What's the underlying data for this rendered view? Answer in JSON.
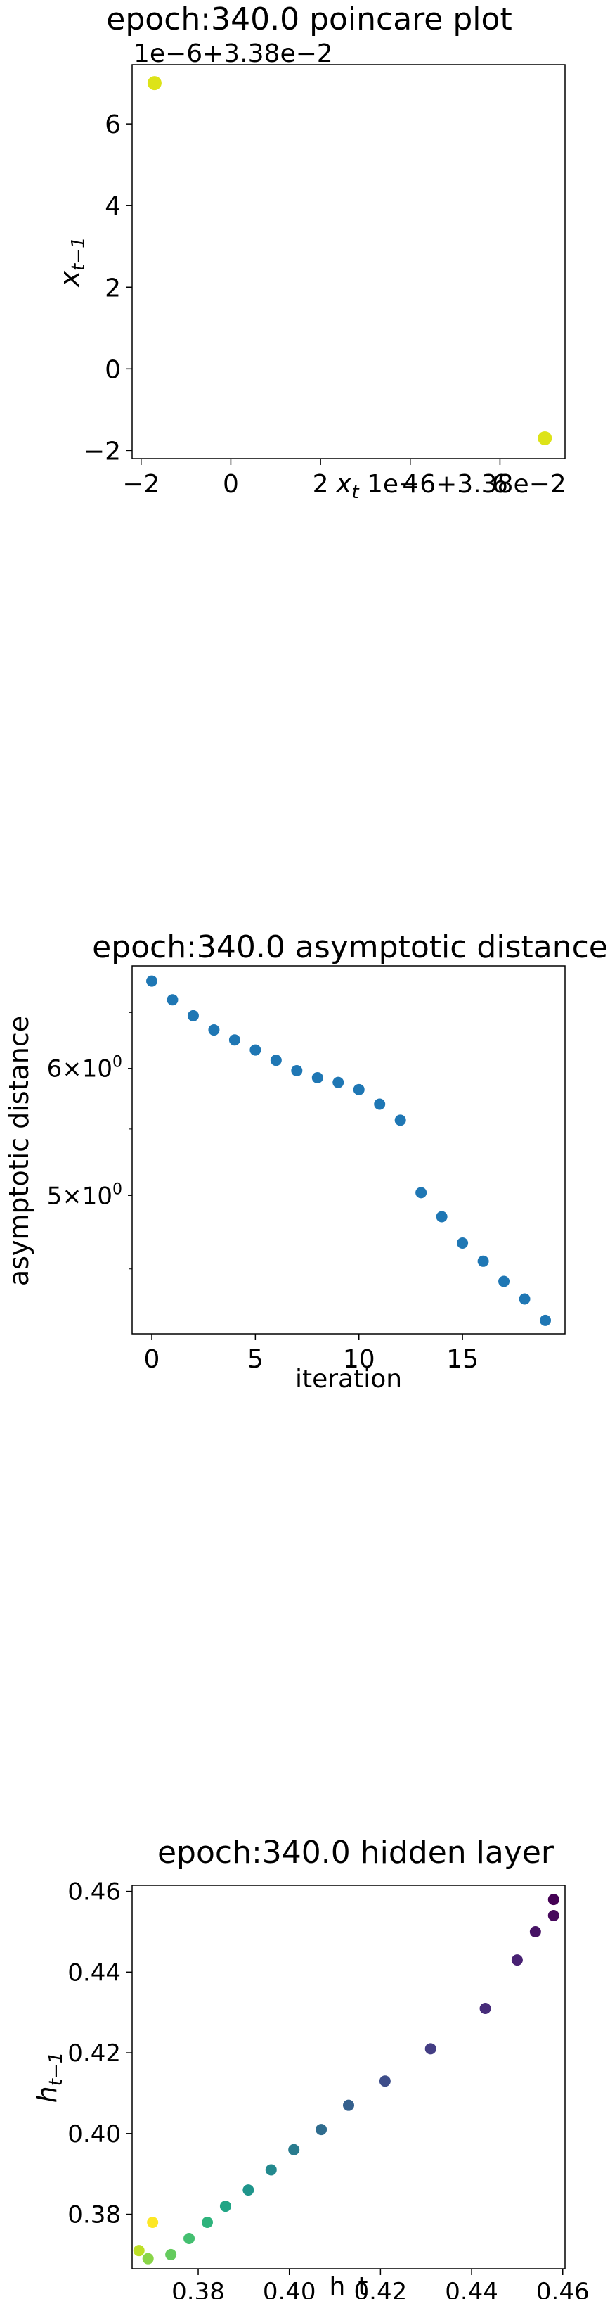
{
  "charts": [
    {
      "title": "epoch:340.0 poincare plot",
      "xlabel": "x_t",
      "ylabel": "x_{t-1}",
      "x_offset_text": "1e−6+3.38e−2",
      "y_offset_text": "1e−6+3.38e−2",
      "xticks": [
        "−2",
        "0",
        "2",
        "4",
        "6"
      ],
      "yticks": [
        "−2",
        "0",
        "2",
        "4",
        "6"
      ]
    },
    {
      "title": "epoch:340.0 asymptotic distance",
      "xlabel": "iteration",
      "ylabel": "asymptotic distance",
      "xticks": [
        "0",
        "5",
        "10",
        "15"
      ],
      "ytick_major_base": [
        "6",
        "5"
      ],
      "ytick_major_exp": [
        "0",
        "0"
      ]
    },
    {
      "title": "epoch:340.0 hidden layer",
      "xlabel": "h_t",
      "ylabel": "h_{t-1}",
      "xticks": [
        "0.38",
        "0.40",
        "0.42",
        "0.44",
        "0.46"
      ],
      "yticks": [
        "0.38",
        "0.40",
        "0.42",
        "0.44",
        "0.46"
      ]
    }
  ],
  "chart_data": [
    {
      "type": "scatter",
      "title": "epoch:340.0 poincare plot",
      "xlabel": "x_t",
      "ylabel": "x_{t-1}",
      "offset": "1e-6+3.38e-2",
      "x": [
        7.0,
        -1.7
      ],
      "y": [
        -1.7,
        7.0
      ],
      "x_units_note": "values shown in units of 1e-6 added to 3.38e-2",
      "xlim": [
        -2.2,
        7.45
      ],
      "ylim": [
        -2.2,
        7.45
      ],
      "color": "#dde318",
      "grid": false
    },
    {
      "type": "scatter",
      "title": "epoch:340.0 asymptotic distance",
      "xlabel": "iteration",
      "ylabel": "asymptotic distance",
      "yscale": "log",
      "x": [
        0,
        1,
        2,
        3,
        4,
        5,
        6,
        7,
        8,
        9,
        10,
        11,
        12,
        13,
        14,
        15,
        16,
        17,
        18,
        19
      ],
      "y": [
        6.8,
        6.62,
        6.47,
        6.34,
        6.25,
        6.16,
        6.07,
        5.98,
        5.92,
        5.88,
        5.82,
        5.7,
        5.57,
        5.02,
        4.85,
        4.67,
        4.55,
        4.42,
        4.31,
        4.18
      ],
      "xlim": [
        -0.95,
        19.95
      ],
      "ylim": [
        4.1,
        6.95
      ],
      "color": "#1f77b4",
      "grid": false
    },
    {
      "type": "scatter",
      "title": "epoch:340.0 hidden layer",
      "xlabel": "h_t",
      "ylabel": "h_{t-1}",
      "x": [
        0.458,
        0.458,
        0.454,
        0.45,
        0.443,
        0.431,
        0.421,
        0.413,
        0.407,
        0.401,
        0.396,
        0.391,
        0.386,
        0.382,
        0.378,
        0.374,
        0.369,
        0.367,
        0.37
      ],
      "y": [
        0.458,
        0.454,
        0.45,
        0.443,
        0.431,
        0.421,
        0.413,
        0.407,
        0.401,
        0.396,
        0.391,
        0.386,
        0.382,
        0.378,
        0.374,
        0.37,
        0.369,
        0.371,
        0.378
      ],
      "colors": [
        "#440154",
        "#46085c",
        "#471365",
        "#482173",
        "#472c7a",
        "#433d84",
        "#3d4d8a",
        "#35608d",
        "#2f6c8e",
        "#297b8e",
        "#23898e",
        "#1f958b",
        "#21a585",
        "#2eb37c",
        "#44bf70",
        "#65cb5e",
        "#89d548",
        "#bddf26",
        "#fde725"
      ],
      "xlim": [
        0.3655,
        0.4605
      ],
      "ylim": [
        0.3665,
        0.4615
      ],
      "grid": false
    }
  ]
}
